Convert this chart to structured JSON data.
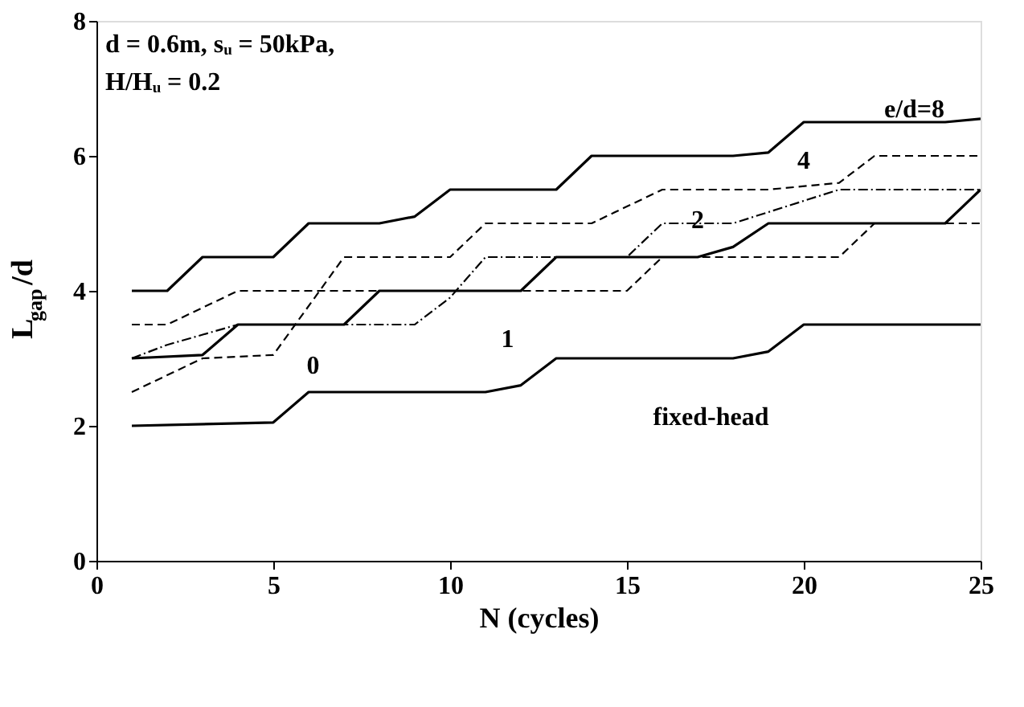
{
  "chart_data": {
    "type": "line",
    "xlabel": "N (cycles)",
    "ylabel": "L$_{gap}$/d",
    "xlim": [
      0,
      25
    ],
    "xticks": [
      0,
      5,
      10,
      15,
      20,
      25
    ],
    "ylim": [
      0,
      8
    ],
    "yticks": [
      0,
      2,
      4,
      6,
      8
    ],
    "grid": false,
    "marker": "none",
    "series": [
      {
        "color": "#000000",
        "line_style": "solid",
        "x": [
          1,
          2,
          3,
          5,
          6,
          8,
          9,
          10,
          13,
          14,
          18,
          19,
          20,
          24,
          25
        ],
        "values": [
          4,
          4,
          4.5,
          4.5,
          5,
          5,
          5.1,
          5.5,
          5.5,
          6,
          6,
          6.05,
          6.5,
          6.5,
          6.55
        ]
      },
      {
        "color": "#000000",
        "line_style": "dashed",
        "x": [
          1,
          3,
          5,
          7,
          10,
          11,
          14,
          16,
          19,
          21,
          22,
          25
        ],
        "values": [
          2.5,
          3,
          3.05,
          4.5,
          4.5,
          5,
          5,
          5.5,
          5.5,
          5.6,
          6,
          6
        ]
      },
      {
        "color": "#000000",
        "line_style": "dashed",
        "x": [
          1,
          2,
          4,
          15,
          16,
          21,
          22,
          25
        ],
        "values": [
          3.5,
          3.5,
          4,
          4,
          4.5,
          4.5,
          5,
          5
        ]
      },
      {
        "color": "#000000",
        "line_style": "dotted",
        "x": [
          1,
          2,
          4,
          9,
          10,
          11,
          15,
          16,
          18,
          21,
          25
        ],
        "values": [
          3,
          3.2,
          3.5,
          3.5,
          3.9,
          4.5,
          4.5,
          5,
          5,
          5.5,
          5.5
        ]
      },
      {
        "color": "#000000",
        "line_style": "solid",
        "x": [
          1,
          3,
          4,
          7,
          8,
          12,
          13,
          17,
          18,
          19,
          24,
          25
        ],
        "values": [
          3,
          3.05,
          3.5,
          3.5,
          4,
          4,
          4.5,
          4.5,
          4.65,
          5,
          5,
          5.5
        ]
      },
      {
        "color": "#000000",
        "line_style": "solid",
        "x": [
          1,
          5,
          6,
          11,
          12,
          13,
          18,
          19,
          20,
          25
        ],
        "values": [
          2,
          2.05,
          2.5,
          2.5,
          2.6,
          3,
          3,
          3.1,
          3.5,
          3.5
        ]
      }
    ],
    "annotations": [
      "d = 0.6m, sᵤ = 50kPa,",
      "H/Hᵤ = 0.2",
      "e/d=8",
      "4",
      "2",
      "1",
      "0",
      "fixed-head"
    ]
  }
}
